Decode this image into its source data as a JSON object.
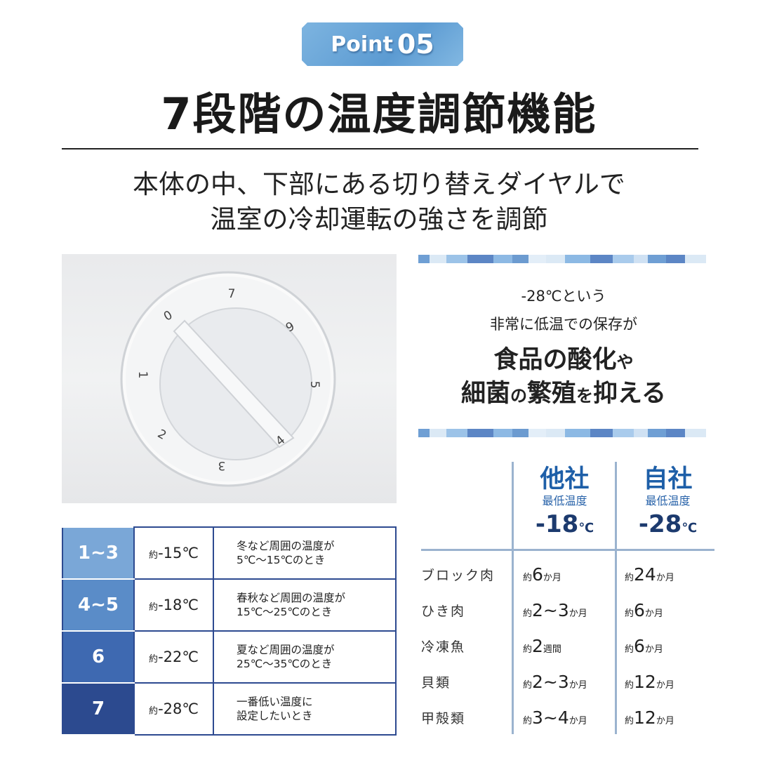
{
  "badge": {
    "word": "Point",
    "number": "05"
  },
  "title": "7段階の温度調節機能",
  "subtitle": [
    "本体の中、下部にある切り替えダイヤルで",
    "温室の冷却運転の強さを調節"
  ],
  "dial": {
    "labels": [
      "0",
      "1",
      "2",
      "3",
      "4",
      "5",
      "6",
      "7"
    ]
  },
  "message": {
    "line1": "-28℃という",
    "line2": "非常に低温での保存が",
    "line3a": "食品の酸化",
    "line3b": "や",
    "line4a": "細菌",
    "line4b": "の",
    "line4c": "繁殖",
    "line4d": "を",
    "line4e": "抑える"
  },
  "level_table": {
    "rows": [
      {
        "level": "1~3",
        "prefix": "約",
        "temp": "-15℃",
        "cond1": "冬など周囲の温度が",
        "cond2": "5℃～15℃のとき",
        "color": "#7aa7d7"
      },
      {
        "level": "4~5",
        "prefix": "約",
        "temp": "-18℃",
        "cond1": "春秋など周囲の温度が",
        "cond2": "15℃～25℃のとき",
        "color": "#5a8cc8"
      },
      {
        "level": "6",
        "prefix": "約",
        "temp": "-22℃",
        "cond1": "夏など周囲の温度が",
        "cond2": "25℃～35℃のとき",
        "color": "#3e69b1"
      },
      {
        "level": "7",
        "prefix": "約",
        "temp": "-28℃",
        "cond1": "一番低い温度に",
        "cond2": "設定したいとき",
        "color": "#2c4a8f"
      }
    ]
  },
  "comparison": {
    "columns": [
      {
        "company": "他社",
        "label": "最低温度",
        "temp": "-18",
        "unit": "℃"
      },
      {
        "company": "自社",
        "label": "最低温度",
        "temp": "-28",
        "unit": "℃"
      }
    ],
    "rows": [
      {
        "item": "ブロック肉",
        "a_pre": "約",
        "a_num": "6",
        "a_unit": "か月",
        "b_pre": "約",
        "b_num": "24",
        "b_unit": "か月"
      },
      {
        "item": "ひき肉",
        "a_pre": "約",
        "a_num": "2~3",
        "a_unit": "か月",
        "b_pre": "約",
        "b_num": "6",
        "b_unit": "か月"
      },
      {
        "item": "冷凍魚",
        "a_pre": "約",
        "a_num": "2",
        "a_unit": "週間",
        "b_pre": "約",
        "b_num": "6",
        "b_unit": "か月"
      },
      {
        "item": "貝類",
        "a_pre": "約",
        "a_num": "2~3",
        "a_unit": "か月",
        "b_pre": "約",
        "b_num": "12",
        "b_unit": "か月"
      },
      {
        "item": "甲殻類",
        "a_pre": "約",
        "a_num": "3~4",
        "a_unit": "か月",
        "b_pre": "約",
        "b_num": "12",
        "b_unit": "か月"
      }
    ]
  }
}
